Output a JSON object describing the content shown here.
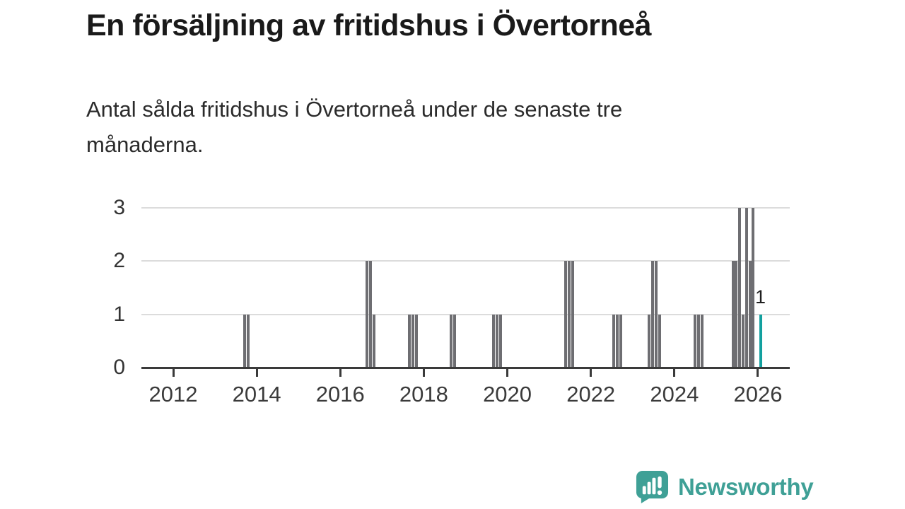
{
  "header": {
    "title": "En försäljning av fritidshus i Övertorneå",
    "subtitle": "Antal sålda fritidshus i Övertorneå under de senaste tre månaderna."
  },
  "chart_data": {
    "type": "bar",
    "title": "En försäljning av fritidshus i Övertorneå",
    "subtitle": "Antal sålda fritidshus i Övertorneå under de senaste tre månaderna.",
    "xlabel": "",
    "ylabel": "",
    "ylim": [
      0,
      3
    ],
    "xlim": [
      2011.25,
      2026.75
    ],
    "y_ticks": [
      0,
      1,
      2,
      3
    ],
    "x_ticks": [
      2012,
      2014,
      2016,
      2018,
      2020,
      2022,
      2024,
      2026
    ],
    "grid": "horizontal",
    "legend": "none",
    "bars": [
      {
        "x": 2013.71,
        "v": 1
      },
      {
        "x": 2013.8,
        "v": 1
      },
      {
        "x": 2016.64,
        "v": 2
      },
      {
        "x": 2016.72,
        "v": 2
      },
      {
        "x": 2016.81,
        "v": 1
      },
      {
        "x": 2017.66,
        "v": 1
      },
      {
        "x": 2017.74,
        "v": 1
      },
      {
        "x": 2017.83,
        "v": 1
      },
      {
        "x": 2018.66,
        "v": 1
      },
      {
        "x": 2018.74,
        "v": 1
      },
      {
        "x": 2019.67,
        "v": 1
      },
      {
        "x": 2019.75,
        "v": 1
      },
      {
        "x": 2019.83,
        "v": 1
      },
      {
        "x": 2021.4,
        "v": 2
      },
      {
        "x": 2021.48,
        "v": 2
      },
      {
        "x": 2021.56,
        "v": 2
      },
      {
        "x": 2022.55,
        "v": 1
      },
      {
        "x": 2022.63,
        "v": 1
      },
      {
        "x": 2022.71,
        "v": 1
      },
      {
        "x": 2023.4,
        "v": 1
      },
      {
        "x": 2023.48,
        "v": 2
      },
      {
        "x": 2023.56,
        "v": 2
      },
      {
        "x": 2023.64,
        "v": 1
      },
      {
        "x": 2024.5,
        "v": 1
      },
      {
        "x": 2024.58,
        "v": 1
      },
      {
        "x": 2024.66,
        "v": 1
      },
      {
        "x": 2025.4,
        "v": 2
      },
      {
        "x": 2025.48,
        "v": 2
      },
      {
        "x": 2025.56,
        "v": 3
      },
      {
        "x": 2025.64,
        "v": 1
      },
      {
        "x": 2025.73,
        "v": 3
      },
      {
        "x": 2025.81,
        "v": 2
      },
      {
        "x": 2025.89,
        "v": 3
      },
      {
        "x": 2026.06,
        "v": 1,
        "accent": true
      }
    ],
    "highlight_label": {
      "text": "1",
      "x": 2026.06,
      "v": 1
    },
    "colors": {
      "bar": "#6e6e72",
      "accent": "#12a09f",
      "brand": "#3fa096",
      "gridline": "#dcdcdc",
      "axis": "#3a3a3a"
    }
  },
  "branding": {
    "name": "Newsworthy"
  }
}
